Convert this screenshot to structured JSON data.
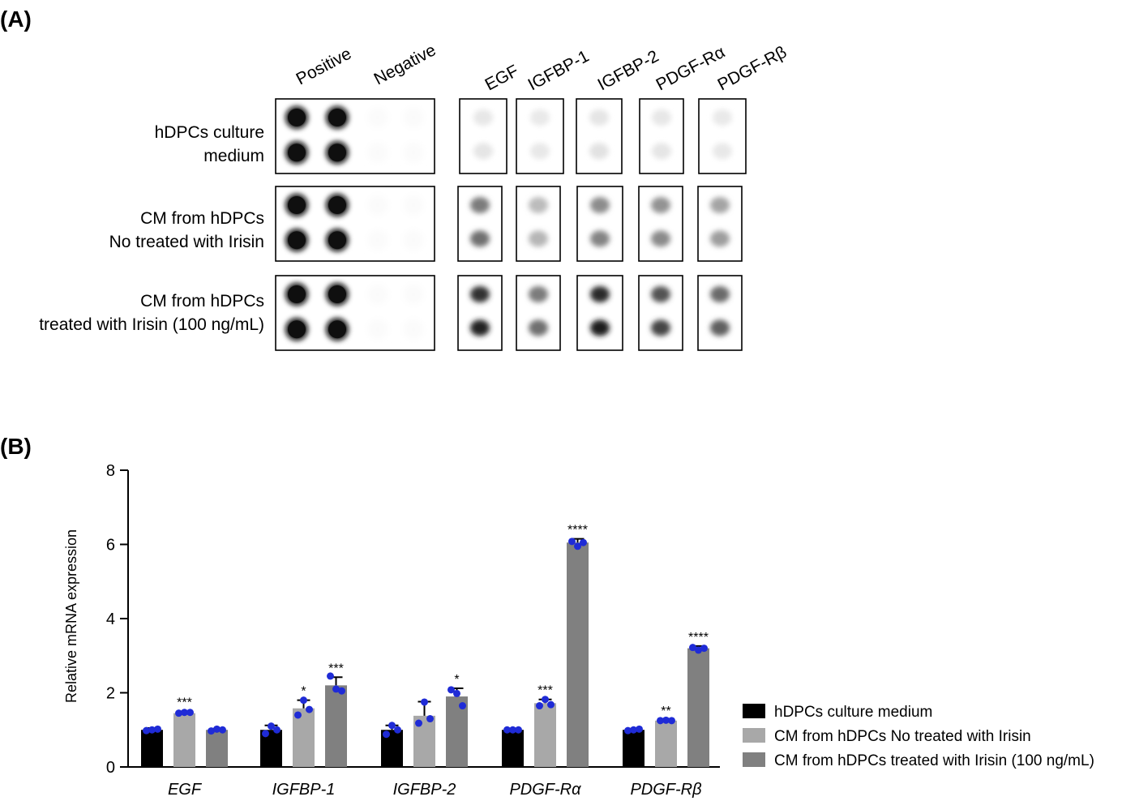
{
  "panel_a": {
    "label": "(A)",
    "control_headers": [
      "Positive",
      "Negative"
    ],
    "factor_headers": [
      "EGF",
      "IGFBP-1",
      "IGFBP-2",
      "PDGF-Rα",
      "PDGF-Rβ"
    ],
    "rows": [
      {
        "label_lines": [
          "hDPCs culture",
          "medium"
        ],
        "positive_intensity": 1.0,
        "negative_intensity": 0.0,
        "factor_intensity": [
          0.1,
          0.09,
          0.11,
          0.1,
          0.09
        ]
      },
      {
        "label_lines": [
          "CM from hDPCs",
          "No treated with Irisin"
        ],
        "positive_intensity": 1.0,
        "negative_intensity": 0.0,
        "factor_intensity": [
          0.55,
          0.28,
          0.48,
          0.45,
          0.38
        ]
      },
      {
        "label_lines": [
          "CM from hDPCs",
          "treated with Irisin (100 ng/mL)"
        ],
        "positive_intensity": 1.0,
        "negative_intensity": 0.0,
        "factor_intensity": [
          0.85,
          0.55,
          0.88,
          0.72,
          0.62
        ]
      }
    ]
  },
  "panel_b": {
    "label": "(B)",
    "chart_data": {
      "type": "bar",
      "categories": [
        "EGF",
        "IGFBP-1",
        "IGFBP-2",
        "PDGF-Rα",
        "PDGF-Rβ"
      ],
      "ylabel": "Relative mRNA expression",
      "ylim": [
        0,
        8
      ],
      "yticks": [
        0,
        2,
        4,
        6,
        8
      ],
      "legend_position": "bottom-right",
      "series": [
        {
          "name": "hDPCs culture medium",
          "color": "#000000",
          "values": [
            1.0,
            1.0,
            1.0,
            1.0,
            1.0
          ],
          "errors": [
            0.05,
            0.12,
            0.12,
            0.02,
            0.03
          ],
          "points": [
            [
              0.98,
              1.0,
              1.02
            ],
            [
              0.9,
              1.1,
              1.0
            ],
            [
              0.88,
              1.12,
              1.0
            ],
            [
              1.0,
              1.0,
              1.0
            ],
            [
              0.98,
              1.0,
              1.02
            ]
          ],
          "significance": [
            "",
            "",
            "",
            "",
            ""
          ]
        },
        {
          "name": "CM from hDPCs No treated with Irisin",
          "color": "#a8a8a8",
          "values": [
            1.45,
            1.58,
            1.38,
            1.72,
            1.25
          ],
          "errors": [
            0.05,
            0.22,
            0.38,
            0.1,
            0.02
          ],
          "points": [
            [
              1.45,
              1.47,
              1.47
            ],
            [
              1.4,
              1.8,
              1.55
            ],
            [
              1.18,
              1.75,
              1.3
            ],
            [
              1.65,
              1.82,
              1.68
            ],
            [
              1.25,
              1.26,
              1.25
            ]
          ],
          "significance": [
            "***",
            "*",
            "",
            "***",
            "**"
          ]
        },
        {
          "name": "CM from hDPCs treated with Irisin (100 ng/mL)",
          "color": "#808080",
          "values": [
            1.0,
            2.2,
            1.9,
            6.05,
            3.2
          ],
          "errors": [
            0.03,
            0.22,
            0.22,
            0.1,
            0.06
          ],
          "points": [
            [
              0.97,
              1.02,
              1.0
            ],
            [
              2.45,
              2.1,
              2.05
            ],
            [
              2.08,
              1.98,
              1.65
            ],
            [
              6.08,
              5.95,
              6.05
            ],
            [
              3.22,
              3.15,
              3.2
            ]
          ],
          "significance": [
            "",
            "***",
            "*",
            "****",
            "****"
          ]
        }
      ]
    }
  }
}
